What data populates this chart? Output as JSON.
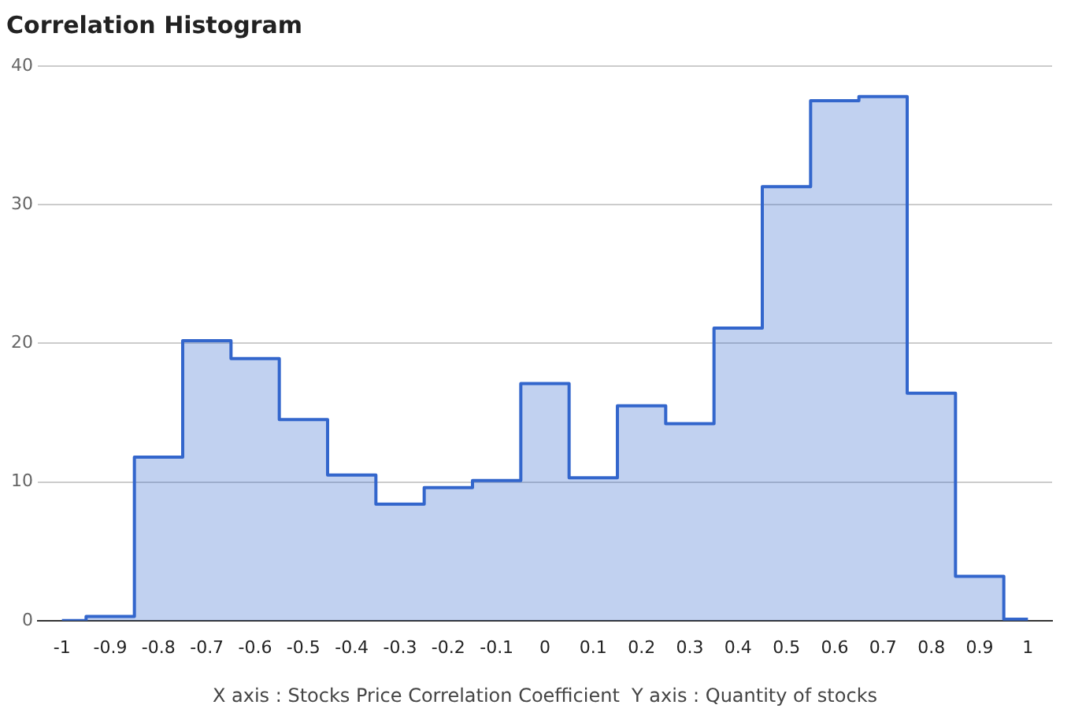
{
  "chart_data": {
    "type": "step",
    "title": "Correlation Histogram",
    "xlabel": "X axis : Stocks Price Correlation Coefficient  Y axis : Quantity of stocks",
    "x": [
      -1,
      -0.9,
      -0.8,
      -0.7,
      -0.6,
      -0.5,
      -0.4,
      -0.3,
      -0.2,
      -0.1,
      0,
      0.1,
      0.2,
      0.3,
      0.4,
      0.5,
      0.6,
      0.7,
      0.8,
      0.9,
      1
    ],
    "values": [
      0,
      0.3,
      11.8,
      20.2,
      18.9,
      14.5,
      10.5,
      8.4,
      9.6,
      10.1,
      17.1,
      10.3,
      15.5,
      14.2,
      21.1,
      31.3,
      37.5,
      37.8,
      16.4,
      3.2,
      0.1
    ],
    "color": "#3366cc",
    "xlim": [
      -1.05,
      1.05
    ],
    "xticks": [
      -1,
      -0.9,
      -0.8,
      -0.7,
      -0.6,
      -0.5,
      -0.4,
      -0.3,
      -0.2,
      -0.1,
      0,
      0.1,
      0.2,
      0.3,
      0.4,
      0.5,
      0.6,
      0.7,
      0.8,
      0.9,
      1
    ],
    "ylim": [
      0,
      40
    ],
    "yticks": [
      0,
      10,
      20,
      30,
      40
    ],
    "grid": "y"
  }
}
